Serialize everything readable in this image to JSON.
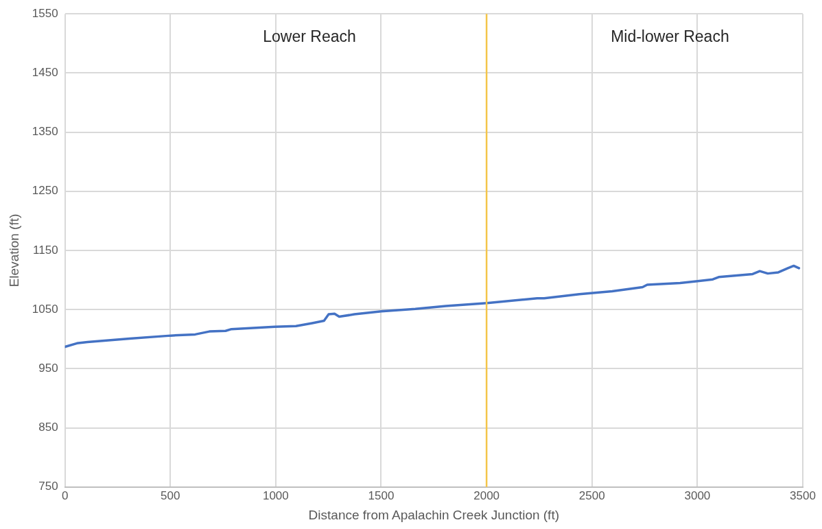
{
  "chart_data": {
    "type": "line",
    "xlabel": "Distance from Apalachin Creek Junction (ft)",
    "ylabel": "Elevation (ft)",
    "series": [
      {
        "color": "#4472c4",
        "x": [
          0,
          57,
          107,
          307,
          501,
          618,
          685,
          762,
          790,
          995,
          1096,
          1173,
          1229,
          1251,
          1279,
          1301,
          1373,
          1501,
          1662,
          1807,
          2001,
          2240,
          2273,
          2440,
          2596,
          2740,
          2762,
          2918,
          3001,
          3073,
          3101,
          3262,
          3296,
          3334,
          3384,
          3429,
          3457,
          3482
        ],
        "values": [
          987,
          993,
          995,
          1001,
          1006,
          1008,
          1013,
          1014,
          1017,
          1021,
          1022,
          1027,
          1031,
          1042,
          1043,
          1038,
          1042,
          1047,
          1051,
          1056,
          1061,
          1069,
          1069,
          1076,
          1081,
          1088,
          1092,
          1095,
          1098,
          1101,
          1105,
          1110,
          1115,
          1111,
          1113,
          1120,
          1124,
          1120
        ]
      }
    ],
    "xlim": [
      0,
      3500
    ],
    "xticks": [
      0,
      500,
      1000,
      1500,
      2000,
      2500,
      3000,
      3500
    ],
    "ylim": [
      750,
      1550
    ],
    "yticks": [
      750,
      850,
      950,
      1050,
      1150,
      1250,
      1350,
      1450,
      1550
    ],
    "grid": true,
    "legend": false,
    "marker": "none",
    "line_style": "solid",
    "ref_lines": [
      {
        "axis": "x",
        "value": 2000,
        "color": "#f4c54a"
      }
    ],
    "annotations": [
      "Lower Reach",
      "Mid-lower Reach"
    ]
  }
}
